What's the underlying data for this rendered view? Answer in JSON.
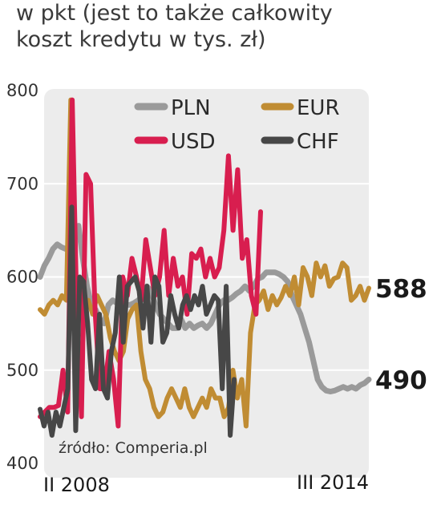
{
  "subtitle_lines": [
    "w pkt (jest to także całkowity",
    "koszt kredytu w tys. zł)"
  ],
  "chart_data": {
    "type": "line",
    "title": "",
    "xlabel": "",
    "ylabel": "",
    "ylim": [
      400,
      800
    ],
    "yticks": [
      "800",
      "700",
      "600",
      "500",
      "400"
    ],
    "x_range_labels": [
      "II 2008",
      "III 2014"
    ],
    "grid": "horizontal",
    "legend_position": "top-right",
    "source": "źródło: Comperia.pl",
    "end_labels": [
      {
        "series": "EUR",
        "value": "588"
      },
      {
        "series": "PLN",
        "value": "490"
      }
    ],
    "colors": {
      "PLN": "#9a9a9a",
      "USD": "#d81e4f",
      "EUR": "#c08c33",
      "CHF": "#474747"
    },
    "series": [
      {
        "name": "PLN",
        "values": [
          600,
          612,
          620,
          630,
          635,
          632,
          630,
          628,
          640,
          655,
          620,
          590,
          570,
          565,
          555,
          550,
          570,
          575,
          572,
          575,
          570,
          570,
          572,
          575,
          580,
          590,
          585,
          570,
          560,
          555,
          550,
          545,
          545,
          555,
          545,
          550,
          545,
          548,
          550,
          545,
          550,
          560,
          570,
          575,
          575,
          578,
          582,
          585,
          590,
          585,
          590,
          598,
          600,
          605,
          605,
          605,
          603,
          600,
          595,
          580,
          570,
          560,
          545,
          530,
          510,
          490,
          482,
          478,
          477,
          478,
          480,
          482,
          480,
          482,
          480,
          484,
          486,
          490
        ]
      },
      {
        "name": "USD",
        "values": [
          450,
          455,
          460,
          460,
          462,
          500,
          455,
          790,
          560,
          450,
          710,
          700,
          560,
          480,
          480,
          520,
          490,
          440,
          600,
          580,
          620,
          600,
          575,
          640,
          610,
          580,
          600,
          650,
          580,
          620,
          590,
          600,
          560,
          625,
          620,
          630,
          600,
          620,
          600,
          610,
          650,
          730,
          650,
          715,
          620,
          640,
          580,
          560,
          670
        ]
      },
      {
        "name": "EUR",
        "values": [
          565,
          560,
          570,
          575,
          570,
          580,
          575,
          790,
          580,
          560,
          570,
          575,
          560,
          580,
          570,
          560,
          535,
          520,
          510,
          520,
          555,
          565,
          570,
          520,
          490,
          480,
          460,
          450,
          455,
          470,
          480,
          470,
          460,
          480,
          460,
          450,
          460,
          470,
          460,
          480,
          470,
          470,
          450,
          460,
          500,
          470,
          490,
          440,
          540,
          570,
          575,
          585,
          565,
          580,
          570,
          578,
          590,
          580,
          600,
          570,
          610,
          600,
          580,
          615,
          600,
          612,
          590,
          598,
          600,
          615,
          610,
          575,
          580,
          590,
          575,
          588
        ]
      },
      {
        "name": "CHF",
        "values": [
          458,
          440,
          455,
          430,
          455,
          440,
          460,
          480,
          675,
          435,
          600,
          595,
          550,
          490,
          480,
          560,
          480,
          470,
          520,
          540,
          600,
          530,
          590,
          595,
          600,
          585,
          545,
          590,
          530,
          600,
          590,
          530,
          540,
          580,
          560,
          545,
          570,
          580,
          565,
          580,
          570,
          590,
          560,
          570,
          580,
          575,
          480,
          590,
          430,
          490
        ]
      }
    ]
  }
}
